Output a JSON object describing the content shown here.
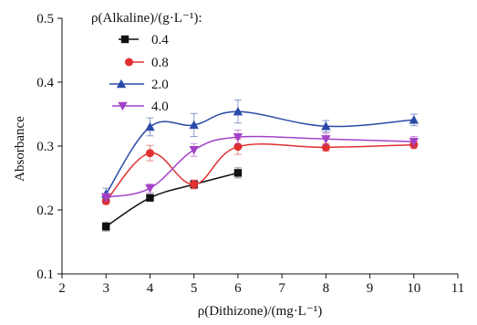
{
  "chart_data": {
    "type": "line",
    "xlabel": "ρ(Dithizone)/(mg·L⁻¹)",
    "ylabel": "Absorbance",
    "legend_title": "ρ(Alkaline)/(g·L⁻¹):",
    "legend_position": "top-left",
    "xlim": [
      2,
      11
    ],
    "ylim": [
      0.1,
      0.5
    ],
    "xticks": [
      "2",
      "3",
      "4",
      "5",
      "6",
      "7",
      "8",
      "9",
      "10",
      "11"
    ],
    "yticks": [
      "0.1",
      "0.2",
      "0.3",
      "0.4",
      "0.5"
    ],
    "grid": false,
    "series": [
      {
        "name": "0.4",
        "color": "#111111",
        "marker": "square",
        "x": [
          3,
          4,
          5,
          6
        ],
        "y": [
          0.174,
          0.219,
          0.24,
          0.258
        ],
        "err": [
          0.007,
          0.004,
          0.006,
          0.008
        ]
      },
      {
        "name": "0.8",
        "color": "#e03030",
        "marker": "circle",
        "x": [
          3,
          4,
          5,
          6,
          8,
          10
        ],
        "y": [
          0.214,
          0.289,
          0.24,
          0.299,
          0.298,
          0.302
        ],
        "err": [
          0.005,
          0.012,
          0.007,
          0.012,
          0.006,
          0.006
        ]
      },
      {
        "name": "2.0",
        "color": "#2b4aa8",
        "marker": "triangle-up",
        "x": [
          3,
          4,
          5,
          6,
          8,
          10
        ],
        "y": [
          0.225,
          0.33,
          0.333,
          0.354,
          0.331,
          0.341
        ],
        "err": [
          0.009,
          0.014,
          0.018,
          0.018,
          0.009,
          0.009
        ]
      },
      {
        "name": "4.0",
        "color": "#a442c8",
        "marker": "triangle-down",
        "x": [
          3,
          4,
          5,
          6,
          8,
          10
        ],
        "y": [
          0.22,
          0.234,
          0.294,
          0.314,
          0.311,
          0.307
        ],
        "err": [
          0.006,
          0.007,
          0.01,
          0.011,
          0.009,
          0.008
        ]
      }
    ]
  }
}
